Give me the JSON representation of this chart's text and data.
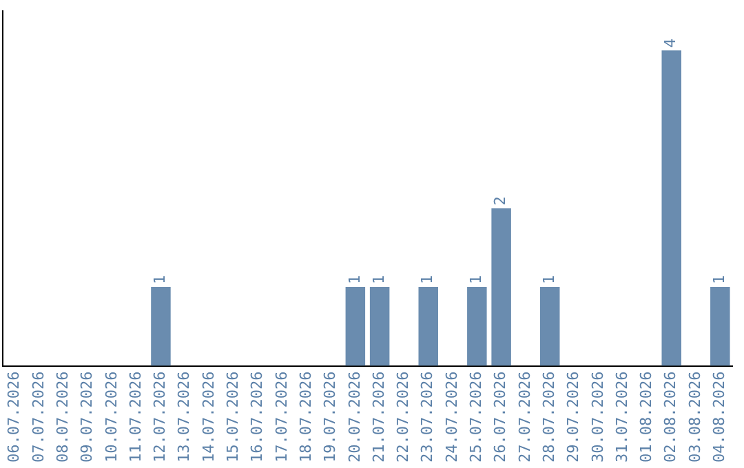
{
  "chart_data": {
    "type": "bar",
    "categories": [
      "06.07.2026",
      "07.07.2026",
      "08.07.2026",
      "09.07.2026",
      "10.07.2026",
      "11.07.2026",
      "12.07.2026",
      "13.07.2026",
      "14.07.2026",
      "15.07.2026",
      "16.07.2026",
      "17.07.2026",
      "18.07.2026",
      "19.07.2026",
      "20.07.2026",
      "21.07.2026",
      "22.07.2026",
      "23.07.2026",
      "24.07.2026",
      "25.07.2026",
      "26.07.2026",
      "27.07.2026",
      "28.07.2026",
      "29.07.2026",
      "30.07.2026",
      "31.07.2026",
      "01.08.2026",
      "02.08.2026",
      "03.08.2026",
      "04.08.2026"
    ],
    "values": [
      0,
      0,
      0,
      0,
      0,
      0,
      1,
      0,
      0,
      0,
      0,
      0,
      0,
      0,
      1,
      1,
      0,
      1,
      0,
      1,
      2,
      0,
      1,
      0,
      0,
      0,
      0,
      4,
      0,
      1
    ],
    "value_labels": [
      null,
      null,
      null,
      null,
      null,
      null,
      "1",
      null,
      null,
      null,
      null,
      null,
      null,
      null,
      "1",
      "1",
      null,
      "1",
      null,
      "1",
      "2",
      null,
      "1",
      null,
      null,
      null,
      null,
      "4",
      null,
      "1"
    ],
    "color": "#6a8caf",
    "tick_labels": "x",
    "grid": false,
    "legend": false
  }
}
